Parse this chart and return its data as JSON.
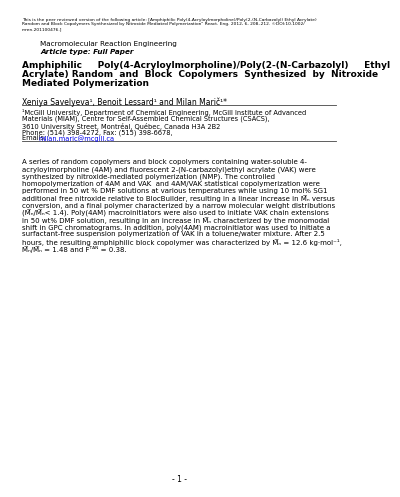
{
  "peer_review_text_1": "This is the peer reviewed version of the following article: [Amphiphilic Poly(4-Acryloylmorpholine)/Poly(2-(N-Carbazolyl) Ethyl Acrylate)",
  "peer_review_text_2": "Random and Block Copolymers Synthesized by Nitroxide Mediated Polymerization” React. Eng. 2012, 6, 208–212. ©DOI:10.1002/",
  "peer_review_text_3": "mren.201100476.]",
  "journal": "Macromolecular Reaction Engineering",
  "article_type": "Article type: Full Paper",
  "title_line1": "Amphiphilic     Poly(4-Acryloylmorpholine)/Poly(2-(N-Carbazolyl)     Ethyl",
  "title_line2": "Acrylate) Random  and  Block  Copolymers  Synthesized  by  Nitroxide",
  "title_line3": "Mediated Polymerization",
  "authors": "Xeniya Savelyeva¹, Benoit Lessard¹ and Milan Marič¹*",
  "affil_1": "¹McGill University, Department of Chemical Engineering, McGill Institute of Advanced",
  "affil_2": "Materials (MIAM), Centre for Self-Assembled Chemical Structures (CSACS),",
  "affil_3": "3610 University Street, Montréal, Québec, Canada H3A 2B2",
  "affil_4": "Phone: (514) 398-4272, Fax: (515) 398-6678,",
  "affil_5_pre": "Emails: ",
  "affil_5_link": "milan.maric@mcgill.ca",
  "abstract_lines": [
    "A series of random copolymers and block copolymers containing water-soluble 4-",
    "acryloylmorpholine (4AM) and fluorescent 2-(N-carbazolyl)ethyl acrylate (VAK) were",
    "synthesized by nitroxide-mediated polymerization (NMP). The controlled",
    "homopolymerization of 4AM and VAK  and 4AM/VAK statistical copolymerization were",
    "performed in 50 wt % DMF solutions at various temperatures while using 10 mol% SG1",
    "additional free nitroxide relative to BlocBuilder, resulting in a linear increase in M̅ₙ versus",
    "conversion, and a final polymer characterized by a narrow molecular weight distributions",
    "(M̅ₙ/M̅ₙ< 1.4). Poly(4AM) macroinitiators were also used to initiate VAK chain extensions",
    "in 50 wt% DMF solution, resulting in an increase in M̅ₙ characterized by the monomodal",
    "shift in GPC chromatograms. In addition, poly(4AM) macroinitiator was used to initiate a",
    "surfactant-free suspension polymerization of VAK in a toluene/water mixture. After 2.5",
    "hours, the resulting amphiphilic block copolymer was characterized by M̅ₙ = 12.6 kg·mol⁻¹,",
    "M̅ₙ/M̅ₙ = 1.48 and Fᵀᴬᴺ = 0.38."
  ],
  "page_number": "- 1 -",
  "bg_color": "#ffffff",
  "text_color": "#000000",
  "link_color": "#0000ee"
}
